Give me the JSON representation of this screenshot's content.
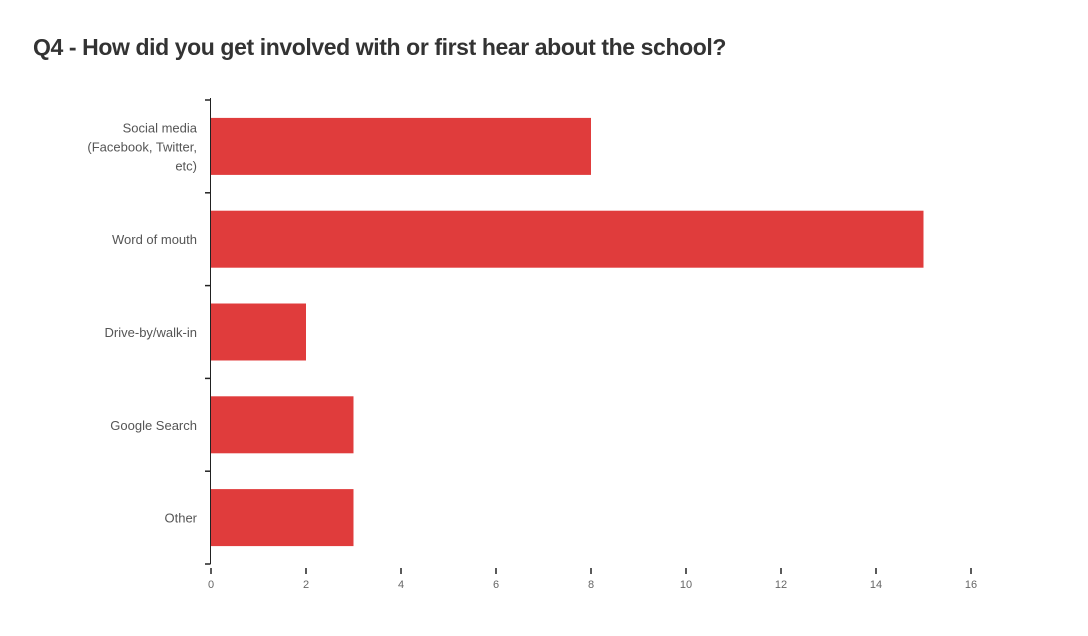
{
  "chart_data": {
    "type": "bar",
    "orientation": "horizontal",
    "title": "Q4 - How did you get involved with or first hear about the school?",
    "categories": [
      [
        "Social media",
        "(Facebook, Twitter,",
        "etc)"
      ],
      [
        "Word of mouth"
      ],
      [
        "Drive-by/walk-in"
      ],
      [
        "Google Search"
      ],
      [
        "Other"
      ]
    ],
    "values": [
      8,
      15,
      2,
      3,
      3
    ],
    "xlim": [
      0,
      16
    ],
    "x_ticks": [
      0,
      2,
      4,
      6,
      8,
      10,
      12,
      14,
      16
    ],
    "bar_color": "#e03c3c",
    "grid": false
  }
}
